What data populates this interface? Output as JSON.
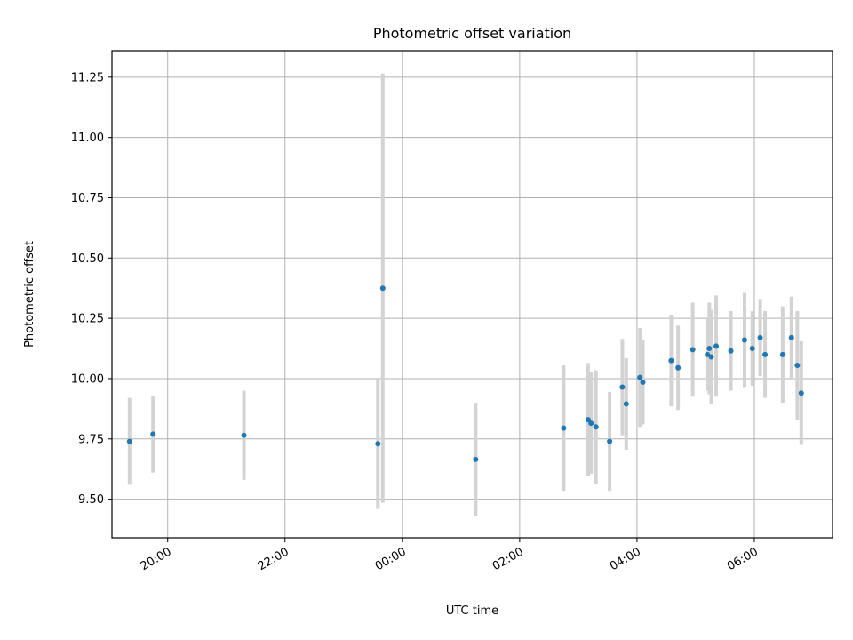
{
  "chart_data": {
    "type": "scatter",
    "title": "Photometric offset variation",
    "xlabel": "UTC time",
    "ylabel": "Photometric offset",
    "x_unit": "hours UTC",
    "x_ticks": [
      {
        "value": 20,
        "label": "20:00"
      },
      {
        "value": 22,
        "label": "22:00"
      },
      {
        "value": 24,
        "label": "00:00"
      },
      {
        "value": 26,
        "label": "02:00"
      },
      {
        "value": 28,
        "label": "04:00"
      },
      {
        "value": 30,
        "label": "06:00"
      }
    ],
    "y_ticks": [
      "9.50",
      "9.75",
      "10.00",
      "10.25",
      "10.50",
      "10.75",
      "11.00",
      "11.25"
    ],
    "xlim": [
      "19:03",
      "31:20"
    ],
    "ylim": [
      9.34,
      11.36
    ],
    "grid": true,
    "marker_color": "#1f77b4",
    "errorbar_color": "#d3d3d3",
    "series": [
      {
        "points": [
          {
            "x": "19:21",
            "y": 9.74,
            "yerr": 0.18
          },
          {
            "x": "19:45",
            "y": 9.77,
            "yerr": 0.16
          },
          {
            "x": "21:18",
            "y": 9.765,
            "yerr": 0.185
          },
          {
            "x": "23:35",
            "y": 9.73,
            "yerr": 0.27
          },
          {
            "x": "23:40",
            "y": 10.375,
            "yerr": 0.89
          },
          {
            "x": "01:15",
            "y": 9.665,
            "yerr": 0.235
          },
          {
            "x": "02:45",
            "y": 9.795,
            "yerr": 0.26
          },
          {
            "x": "03:10",
            "y": 9.83,
            "yerr": 0.235
          },
          {
            "x": "03:13",
            "y": 9.815,
            "yerr": 0.21
          },
          {
            "x": "03:18",
            "y": 9.8,
            "yerr": 0.235
          },
          {
            "x": "03:32",
            "y": 9.74,
            "yerr": 0.205
          },
          {
            "x": "03:45",
            "y": 9.965,
            "yerr": 0.2
          },
          {
            "x": "03:49",
            "y": 9.895,
            "yerr": 0.19
          },
          {
            "x": "04:03",
            "y": 10.005,
            "yerr": 0.205
          },
          {
            "x": "04:06",
            "y": 9.985,
            "yerr": 0.175
          },
          {
            "x": "04:35",
            "y": 10.075,
            "yerr": 0.19
          },
          {
            "x": "04:42",
            "y": 10.045,
            "yerr": 0.175
          },
          {
            "x": "04:57",
            "y": 10.12,
            "yerr": 0.195
          },
          {
            "x": "05:12",
            "y": 10.1,
            "yerr": 0.15
          },
          {
            "x": "05:14",
            "y": 10.125,
            "yerr": 0.19
          },
          {
            "x": "05:16",
            "y": 10.09,
            "yerr": 0.195
          },
          {
            "x": "05:21",
            "y": 10.135,
            "yerr": 0.21
          },
          {
            "x": "05:36",
            "y": 10.115,
            "yerr": 0.165
          },
          {
            "x": "05:50",
            "y": 10.16,
            "yerr": 0.195
          },
          {
            "x": "05:58",
            "y": 10.125,
            "yerr": 0.155
          },
          {
            "x": "06:06",
            "y": 10.17,
            "yerr": 0.16
          },
          {
            "x": "06:11",
            "y": 10.1,
            "yerr": 0.18
          },
          {
            "x": "06:29",
            "y": 10.1,
            "yerr": 0.2
          },
          {
            "x": "06:38",
            "y": 10.17,
            "yerr": 0.17
          },
          {
            "x": "06:44",
            "y": 10.055,
            "yerr": 0.225
          },
          {
            "x": "06:48",
            "y": 9.94,
            "yerr": 0.215
          }
        ]
      }
    ]
  }
}
